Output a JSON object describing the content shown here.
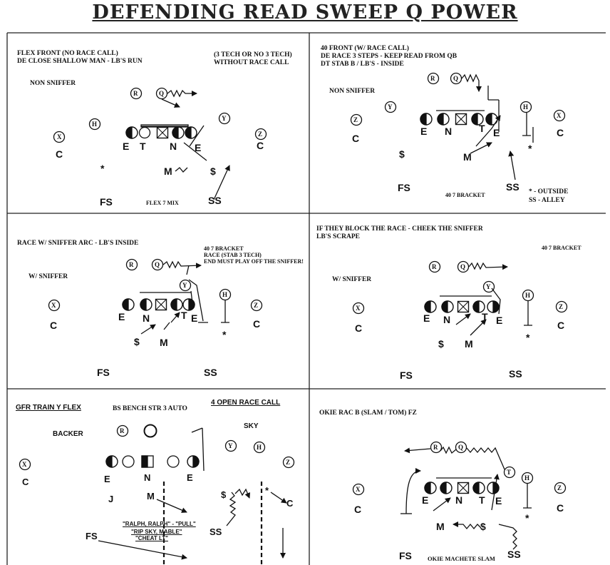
{
  "title": "DEFENDING READ SWEEP Q POWER",
  "panels": {
    "p1": {
      "heading1": "FLEX FRONT (NO RACE CALL)",
      "heading2": "DE CLOSE SHALLOW MAN - LB'S RUN",
      "note1": "(3 TECH OR NO 3 TECH)",
      "note2": "WITHOUT RACE CALL",
      "sniffer": "NON SNIFFER",
      "small": "FLEX 7 MIX",
      "labels": {
        "E1": "E",
        "T": "T",
        "N": "N",
        "E2": "E",
        "C1": "C",
        "C2": "C",
        "M": "M",
        "S": "$",
        "FS": "FS",
        "SS": "SS",
        "star": "*"
      },
      "circles": {
        "R": "R",
        "Q": "Q",
        "H": "H",
        "Y": "Y",
        "X": "X",
        "Z": "Z"
      }
    },
    "p2": {
      "heading1": "40 FRONT (W/ RACE CALL)",
      "heading2": "DE RACE 3 STEPS - KEEP READ FROM QB",
      "heading3": "DT STAB B / LB'S - INSIDE",
      "sniffer": "NON SNIFFER",
      "bracket": "40 7 BRACKET",
      "outside": "* - OUTSIDE",
      "alley": "SS - ALLEY",
      "labels": {
        "E1": "E",
        "N": "N",
        "T": "T",
        "E2": "E",
        "C1": "C",
        "C2": "C",
        "M": "M",
        "S": "$",
        "FS": "FS",
        "SS": "SS",
        "star": "*"
      },
      "circles": {
        "R": "R",
        "Q": "Q",
        "Y": "Y",
        "H": "H",
        "X": "X",
        "Z": "Z"
      }
    },
    "p3": {
      "heading1": "RACE W/ SNIFFER ARC - LB'S INSIDE",
      "note1": "40 7 BRACKET",
      "note2": "RACE (STAB 3 TECH)",
      "note3": "END MUST PLAY OFF THE SNIFFER!",
      "sniffer": "W/ SNIFFER",
      "labels": {
        "E1": "E",
        "N": "N",
        "T": "T",
        "E2": "E",
        "C1": "C",
        "C2": "C",
        "M": "M",
        "S": "$",
        "FS": "FS",
        "SS": "SS",
        "star": "*"
      },
      "circles": {
        "R": "R",
        "Q": "Q",
        "Y": "Y",
        "H": "H",
        "X": "X",
        "Z": "Z"
      }
    },
    "p4": {
      "heading1": "IF THEY BLOCK THE RACE - CHEEK THE SNIFFER",
      "heading2": "LB'S SCRAPE",
      "bracket": "40 7 BRACKET",
      "sniffer": "W/ SNIFFER",
      "labels": {
        "E1": "E",
        "N": "N",
        "T": "T",
        "E2": "E",
        "C1": "C",
        "C2": "C",
        "M": "M",
        "S": "$",
        "FS": "FS",
        "SS": "SS",
        "star": "*"
      },
      "circles": {
        "R": "R",
        "Q": "Q",
        "Y": "Y",
        "H": "H",
        "X": "X",
        "Z": "Z"
      }
    },
    "p5": {
      "heading1": "GFR TRAIN Y FLEX",
      "heading2": "BS BENCH STR 3 AUTO",
      "heading3": "4 OPEN  RACE CALL",
      "backer": "BACKER",
      "sky": "SKY",
      "call1": "\"RALPH, RALPH\" - \"PULL\"",
      "call2": "\"RIP SKY, MABLE\"",
      "call3": "\"CHEAT LT\"",
      "labels": {
        "E1": "E",
        "N": "N",
        "E2": "E",
        "C1": "C",
        "C2": "C",
        "J": "J",
        "M": "M",
        "S": "$",
        "FS": "FS",
        "SS": "SS",
        "star": "*"
      },
      "circles": {
        "R": "R",
        "Y": "Y",
        "H": "H",
        "X": "X",
        "Z": "Z"
      }
    },
    "p6": {
      "heading1": "OKIE RAC B (SLAM / TOM) FZ",
      "bottom": "OKIE MACHETE SLAM",
      "labels": {
        "E1": "E",
        "N": "N",
        "T": "T",
        "E2": "E",
        "C1": "C",
        "C2": "C",
        "M": "M",
        "S": "$",
        "FS": "FS",
        "SS": "SS",
        "star": "*"
      },
      "circles": {
        "R": "R",
        "Q": "Q",
        "T": "T",
        "H": "H",
        "X": "X",
        "Z": "Z"
      }
    }
  }
}
